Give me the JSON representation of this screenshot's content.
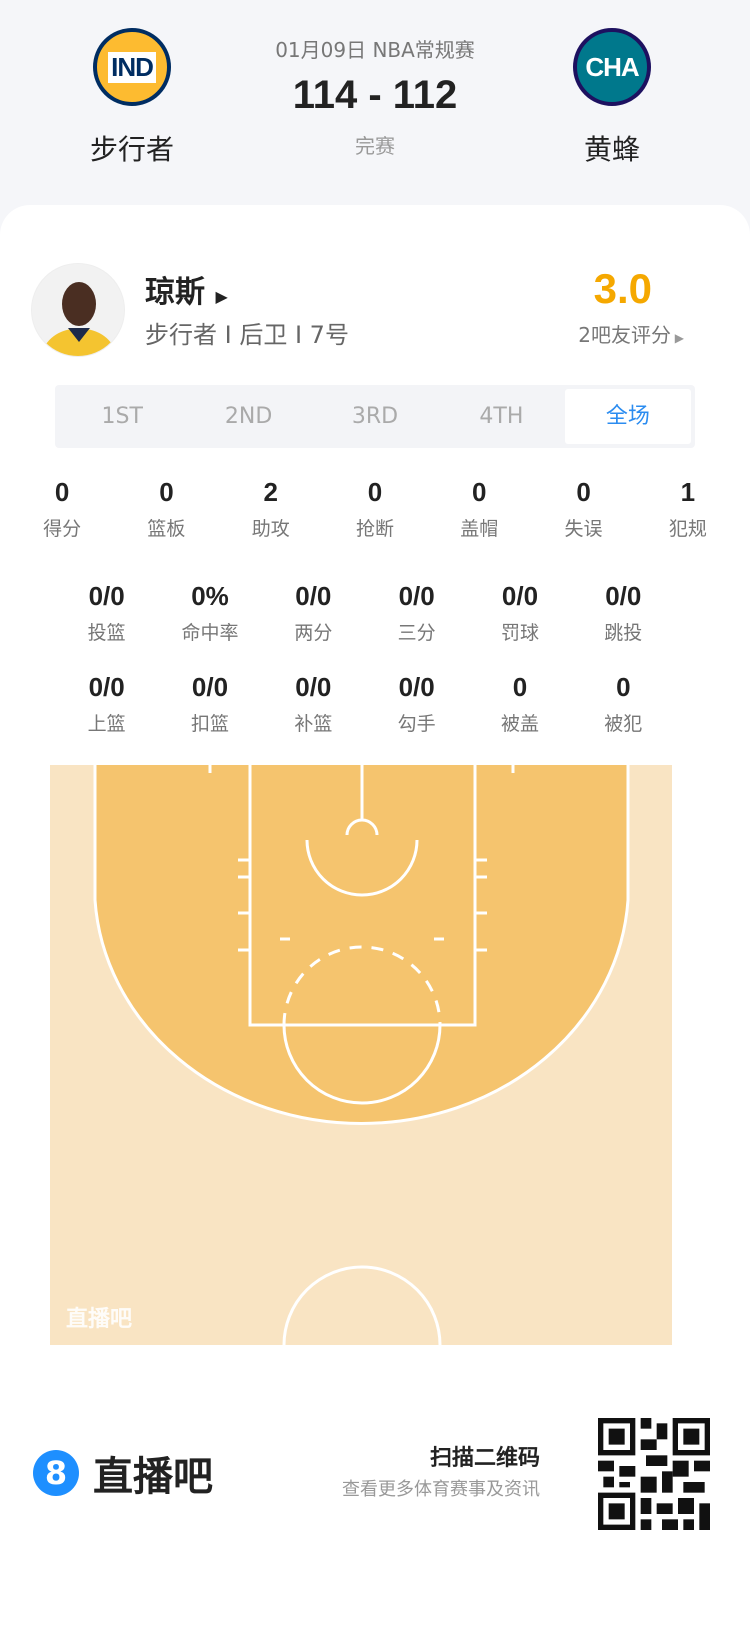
{
  "match": {
    "date_league": "01月09日 NBA常规赛",
    "score": "114 - 112",
    "status": "完赛",
    "home": {
      "abbr": "IND",
      "name": "步行者",
      "color": "#002d62",
      "accent": "#fdbb30"
    },
    "away": {
      "abbr": "CHA",
      "name": "黄蜂",
      "color": "#1d1160",
      "accent": "#00788c"
    }
  },
  "player": {
    "name": "琼斯",
    "info": "步行者 I 后卫 I 7号",
    "rating": "3.0",
    "rating_count": "2吧友评分"
  },
  "tabs": [
    {
      "label": "1ST"
    },
    {
      "label": "2ND"
    },
    {
      "label": "3RD"
    },
    {
      "label": "4TH"
    },
    {
      "label": "全场",
      "active": true
    }
  ],
  "stats_row1": [
    {
      "v": "0",
      "l": "得分"
    },
    {
      "v": "0",
      "l": "篮板"
    },
    {
      "v": "2",
      "l": "助攻"
    },
    {
      "v": "0",
      "l": "抢断"
    },
    {
      "v": "0",
      "l": "盖帽"
    },
    {
      "v": "0",
      "l": "失误"
    },
    {
      "v": "1",
      "l": "犯规"
    }
  ],
  "stats_row2": [
    {
      "v": "0/0",
      "l": "投篮"
    },
    {
      "v": "0%",
      "l": "命中率"
    },
    {
      "v": "0/0",
      "l": "两分"
    },
    {
      "v": "0/0",
      "l": "三分"
    },
    {
      "v": "0/0",
      "l": "罚球"
    },
    {
      "v": "0/0",
      "l": "跳投"
    }
  ],
  "stats_row3": [
    {
      "v": "0/0",
      "l": "上篮"
    },
    {
      "v": "0/0",
      "l": "扣篮"
    },
    {
      "v": "0/0",
      "l": "补篮"
    },
    {
      "v": "0/0",
      "l": "勾手"
    },
    {
      "v": "0",
      "l": "被盖"
    },
    {
      "v": "0",
      "l": "被犯"
    }
  ],
  "court": {
    "watermark": "直播吧"
  },
  "footer": {
    "brand_icon": "8",
    "brand": "直播吧",
    "scan": "扫描二维码",
    "more": "查看更多体育赛事及资讯"
  },
  "colors": {
    "accent": "#2b8cf0",
    "rating": "#f5a800",
    "court_outer": "#f9e4c3",
    "court_inner": "#f5c46e"
  }
}
